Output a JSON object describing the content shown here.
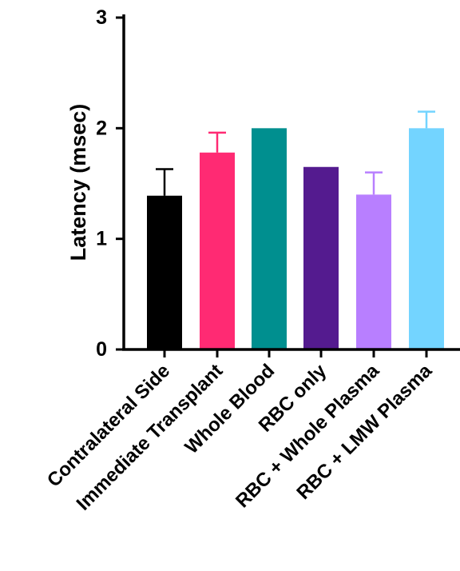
{
  "chart_data": {
    "type": "bar",
    "title": "",
    "xlabel": "",
    "ylabel": "Latency (msec)",
    "ylim": [
      0,
      3
    ],
    "yticks": [
      0,
      1,
      2,
      3
    ],
    "grid": false,
    "categories": [
      "Contralateral Side",
      "Immediate Transplant",
      "Whole Blood",
      "RBC only",
      "RBC + Whole Plasma",
      "RBC + LMW Plasma"
    ],
    "values": [
      1.39,
      1.78,
      2.0,
      1.65,
      1.4,
      2.0
    ],
    "errors": [
      0.24,
      0.18,
      0.0,
      0.0,
      0.2,
      0.15
    ],
    "colors": [
      "#000000",
      "#ff2a73",
      "#008f8f",
      "#541b8f",
      "#b87fff",
      "#73d4ff"
    ]
  }
}
